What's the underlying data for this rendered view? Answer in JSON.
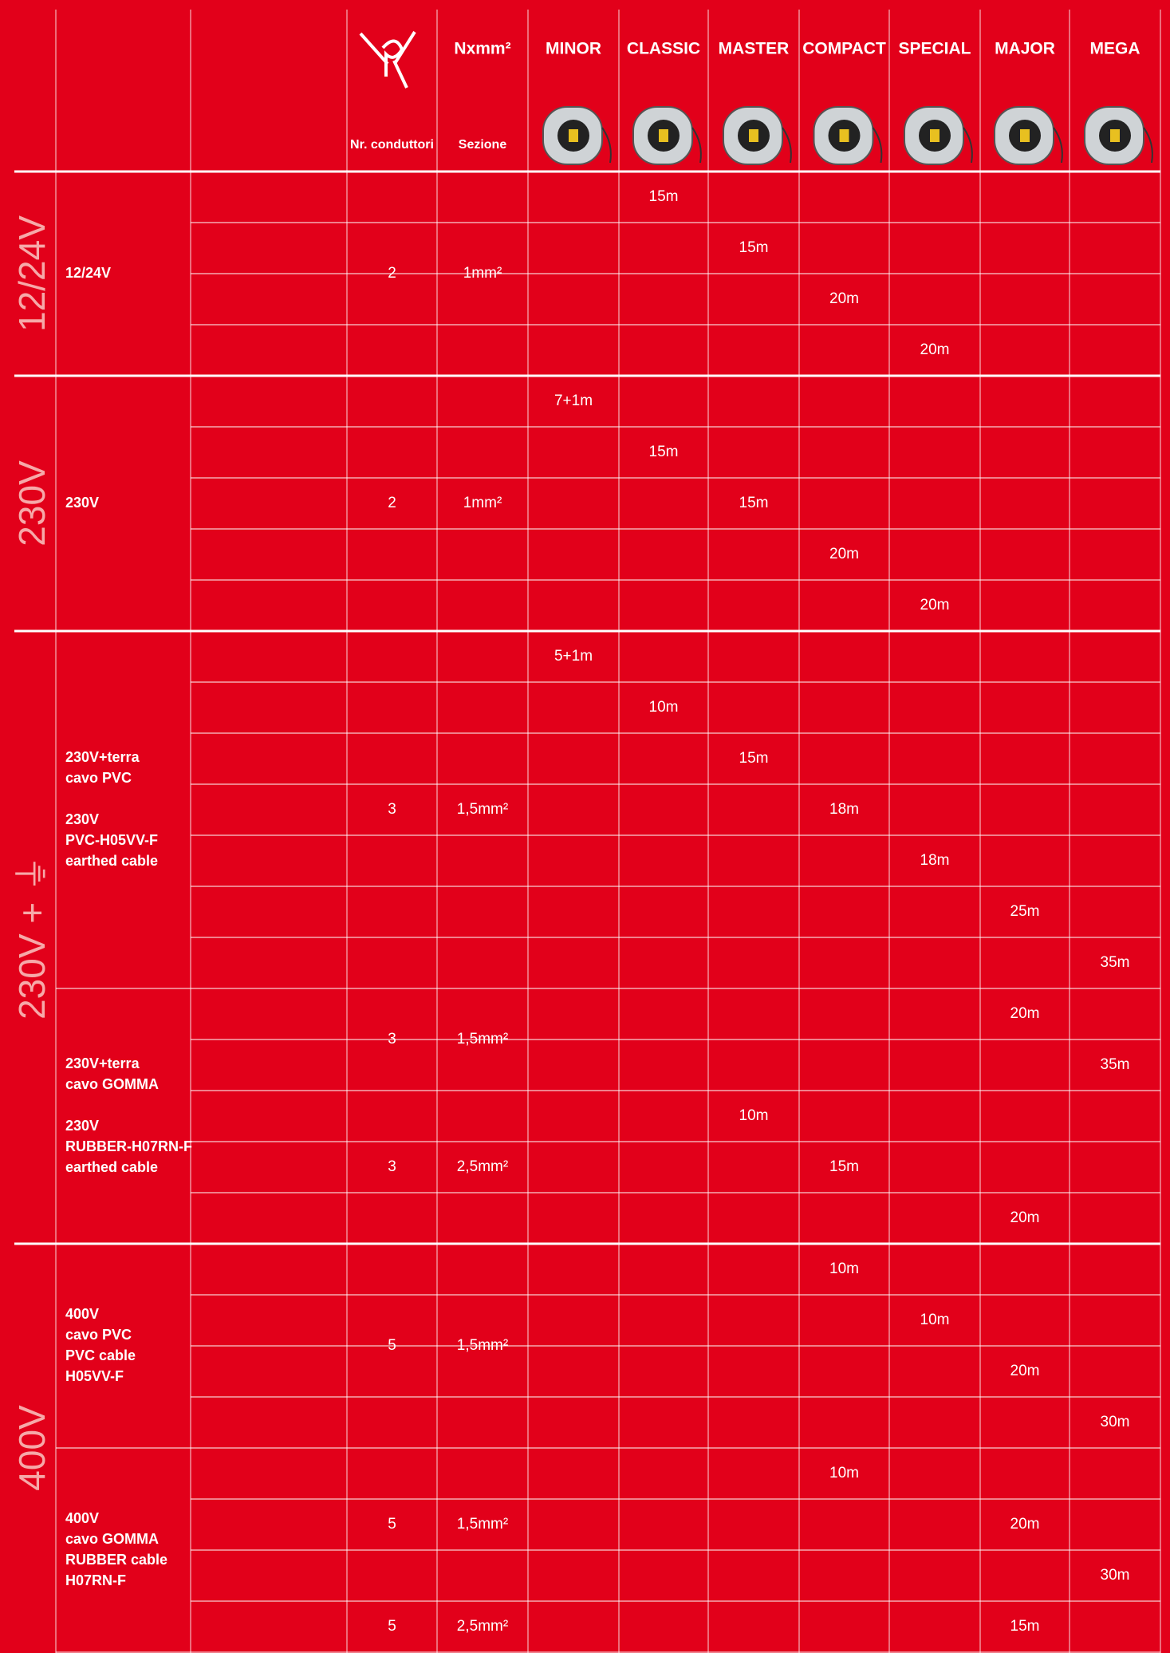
{
  "header": {
    "symbol_label": "Nxmm²",
    "conductors_label": "Nr. conduttori",
    "section_label": "Sezione",
    "models": [
      "MINOR",
      "CLASSIC",
      "MASTER",
      "COMPACT",
      "SPECIAL",
      "MAJOR",
      "MEGA"
    ]
  },
  "groups": [
    {
      "label": "12/24V",
      "blocks": [
        {
          "description": [
            [
              "12/24V"
            ]
          ],
          "subgroups": [
            {
              "conductors": 2,
              "section": "1mm²",
              "rows": [
                [
                  null,
                  "15m",
                  null,
                  null,
                  null,
                  null,
                  null
                ],
                [
                  null,
                  null,
                  "15m",
                  null,
                  null,
                  null,
                  null
                ],
                [
                  null,
                  null,
                  null,
                  "20m",
                  null,
                  null,
                  null
                ],
                [
                  null,
                  null,
                  null,
                  null,
                  "20m",
                  null,
                  null
                ]
              ]
            }
          ]
        }
      ]
    },
    {
      "label": "230V",
      "blocks": [
        {
          "description": [
            [
              "230V"
            ]
          ],
          "subgroups": [
            {
              "conductors": 2,
              "section": "1mm²",
              "rows": [
                [
                  "7+1m",
                  null,
                  null,
                  null,
                  null,
                  null,
                  null
                ],
                [
                  null,
                  "15m",
                  null,
                  null,
                  null,
                  null,
                  null
                ],
                [
                  null,
                  null,
                  "15m",
                  null,
                  null,
                  null,
                  null
                ],
                [
                  null,
                  null,
                  null,
                  "20m",
                  null,
                  null,
                  null
                ],
                [
                  null,
                  null,
                  null,
                  null,
                  "20m",
                  null,
                  null
                ]
              ]
            }
          ]
        }
      ]
    },
    {
      "label": "230V + ⏚",
      "blocks": [
        {
          "description": [
            [
              "230V+terra",
              "cavo PVC"
            ],
            [
              "230V",
              "PVC-H05VV-F",
              "earthed cable"
            ]
          ],
          "subgroups": [
            {
              "conductors": 3,
              "section": "1,5mm²",
              "rows": [
                [
                  "5+1m",
                  null,
                  null,
                  null,
                  null,
                  null,
                  null
                ],
                [
                  null,
                  "10m",
                  null,
                  null,
                  null,
                  null,
                  null
                ],
                [
                  null,
                  null,
                  "15m",
                  null,
                  null,
                  null,
                  null
                ],
                [
                  null,
                  null,
                  null,
                  "18m",
                  null,
                  null,
                  null
                ],
                [
                  null,
                  null,
                  null,
                  null,
                  "18m",
                  null,
                  null
                ],
                [
                  null,
                  null,
                  null,
                  null,
                  null,
                  "25m",
                  null
                ],
                [
                  null,
                  null,
                  null,
                  null,
                  null,
                  null,
                  "35m"
                ]
              ]
            }
          ]
        },
        {
          "description": [
            [
              "230V+terra",
              "cavo GOMMA"
            ],
            [
              "230V",
              "RUBBER-H07RN-F",
              "earthed cable"
            ]
          ],
          "subgroups": [
            {
              "conductors": 3,
              "section": "1,5mm²",
              "rows": [
                [
                  null,
                  null,
                  null,
                  null,
                  null,
                  "20m",
                  null
                ],
                [
                  null,
                  null,
                  null,
                  null,
                  null,
                  null,
                  "35m"
                ]
              ]
            },
            {
              "conductors": 3,
              "section": "2,5mm²",
              "rows": [
                [
                  null,
                  null,
                  "10m",
                  null,
                  null,
                  null,
                  null
                ],
                [
                  null,
                  null,
                  null,
                  "15m",
                  null,
                  null,
                  null
                ],
                [
                  null,
                  null,
                  null,
                  null,
                  null,
                  "20m",
                  null
                ]
              ]
            }
          ]
        }
      ]
    },
    {
      "label": "400V",
      "blocks": [
        {
          "description": [
            [
              "400V",
              "cavo PVC",
              "PVC cable",
              "H05VV-F"
            ]
          ],
          "subgroups": [
            {
              "conductors": 5,
              "section": "1,5mm²",
              "rows": [
                [
                  null,
                  null,
                  null,
                  "10m",
                  null,
                  null,
                  null
                ],
                [
                  null,
                  null,
                  null,
                  null,
                  "10m",
                  null,
                  null
                ],
                [
                  null,
                  null,
                  null,
                  null,
                  null,
                  "20m",
                  null
                ],
                [
                  null,
                  null,
                  null,
                  null,
                  null,
                  null,
                  "30m"
                ]
              ]
            }
          ]
        },
        {
          "description": [
            [
              "400V",
              "cavo GOMMA",
              "RUBBER cable",
              "H07RN-F"
            ]
          ],
          "subgroups": [
            {
              "conductors": 5,
              "section": "1,5mm²",
              "rows": [
                [
                  null,
                  null,
                  null,
                  "10m",
                  null,
                  null,
                  null
                ],
                [
                  null,
                  null,
                  null,
                  null,
                  null,
                  "20m",
                  null
                ],
                [
                  null,
                  null,
                  null,
                  null,
                  null,
                  null,
                  "30m"
                ]
              ]
            },
            {
              "conductors": 5,
              "section": "2,5mm²",
              "rows": [
                [
                  null,
                  null,
                  null,
                  null,
                  null,
                  "15m",
                  null
                ]
              ]
            }
          ]
        }
      ]
    }
  ]
}
